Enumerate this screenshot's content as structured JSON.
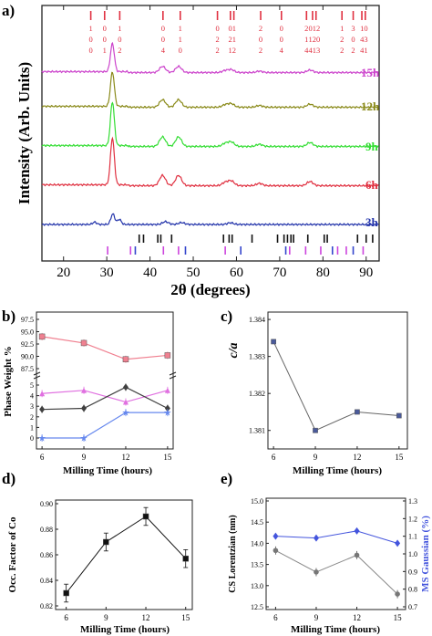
{
  "chart_data": [
    {
      "panel": "a)",
      "type": "line",
      "xlabel": "2θ (degrees)",
      "ylabel": "Intensity (Arb. Units)",
      "xlim": [
        15,
        93
      ],
      "xticks": [
        20,
        30,
        40,
        50,
        60,
        70,
        80,
        90
      ],
      "series": [
        {
          "name": "15h",
          "color": "#cc44cc"
        },
        {
          "name": "12h",
          "color": "#8a8a1a"
        },
        {
          "name": "9h",
          "color": "#33dd33"
        },
        {
          "name": "6h",
          "color": "#e03040"
        },
        {
          "name": "3h",
          "color": "#2233aa"
        }
      ],
      "peaks": [
        {
          "x": 31.3,
          "h": 1.0
        },
        {
          "x": 42.9,
          "h": 0.22
        },
        {
          "x": 46.6,
          "h": 0.22
        },
        {
          "x": 57.4,
          "h": 0.07
        },
        {
          "x": 58.8,
          "h": 0.1
        },
        {
          "x": 65.3,
          "h": 0.05
        },
        {
          "x": 77.0,
          "h": 0.09
        }
      ],
      "peaks_3h": [
        {
          "x": 31.4,
          "h": 0.45
        },
        {
          "x": 32.9,
          "h": 0.22
        },
        {
          "x": 27.2,
          "h": 0.1
        },
        {
          "x": 43.6,
          "h": 0.12
        },
        {
          "x": 47.3,
          "h": 0.08
        },
        {
          "x": 58.6,
          "h": 0.07
        }
      ],
      "hkl_labels": [
        {
          "x": 26.3,
          "hkl": [
            "1",
            "0",
            "0"
          ]
        },
        {
          "x": 29.5,
          "hkl": [
            "0",
            "0",
            "1"
          ]
        },
        {
          "x": 33.0,
          "hkl": [
            "1",
            "0",
            "2"
          ]
        },
        {
          "x": 43.0,
          "hkl": [
            "0",
            "0",
            "4"
          ]
        },
        {
          "x": 47.0,
          "hkl": [
            "1",
            "1",
            "0"
          ]
        },
        {
          "x": 55.6,
          "hkl": [
            "0",
            "2",
            "2"
          ]
        },
        {
          "x": 59.0,
          "hkl": [
            "01",
            "21",
            "12"
          ]
        },
        {
          "x": 65.6,
          "hkl": [
            "2",
            "0",
            "2"
          ]
        },
        {
          "x": 70.4,
          "hkl": [
            "0",
            "0",
            "4"
          ]
        },
        {
          "x": 76.2,
          "hkl": [
            "2",
            "1",
            "4"
          ]
        },
        {
          "x": 78.0,
          "hkl": [
            "012",
            "120",
            "413"
          ]
        },
        {
          "x": 84.4,
          "hkl": [
            "1",
            "2",
            "2"
          ]
        },
        {
          "x": 87.0,
          "hkl": [
            "3",
            "0",
            "2"
          ]
        },
        {
          "x": 89.5,
          "hkl": [
            "10",
            "43",
            "41"
          ]
        }
      ],
      "hkl_ticks": [
        26.3,
        29.5,
        33.0,
        43.0,
        47.0,
        55.6,
        58.6,
        59.4,
        65.6,
        70.4,
        76.2,
        77.6,
        78.4,
        84.4,
        87.0,
        89.0,
        89.8
      ],
      "ref_black": [
        37.5,
        38.5,
        41.8,
        42.5,
        45.0,
        57.0,
        58.3,
        59.0,
        63.6,
        69.5,
        71.0,
        71.8,
        72.6,
        73.2,
        76.5,
        80.3,
        81.0,
        88.0,
        90.0,
        91.5
      ],
      "ref_magenta": [
        30.2,
        35.5,
        43.1,
        46.6,
        57.4,
        72.3,
        76.0,
        79.5,
        83.4,
        85.4,
        89.3
      ],
      "ref_blue": [
        36.6,
        48.2,
        61.0,
        71.4,
        82.2,
        87.0
      ]
    },
    {
      "panel": "b)",
      "type": "line",
      "xlabel": "Milling Time (hours)",
      "ylabel": "Phase Weight %",
      "x": [
        6,
        9,
        12,
        15
      ],
      "yticks_lower": [
        0,
        1,
        2,
        3,
        4,
        5
      ],
      "yticks_upper": [
        "87.5",
        "90.0",
        "92.5",
        "95.0",
        "97.5"
      ],
      "series": [
        {
          "color": "#f08090",
          "marker": "square",
          "values": [
            94.0,
            92.7,
            89.4,
            90.2
          ]
        },
        {
          "color": "#e070e0",
          "marker": "triangle",
          "values": [
            4.2,
            4.5,
            3.4,
            4.5
          ]
        },
        {
          "color": "#404040",
          "marker": "diamond",
          "values": [
            2.7,
            2.8,
            4.8,
            2.8
          ]
        },
        {
          "color": "#6688ee",
          "marker": "star",
          "values": [
            0.0,
            0.0,
            2.4,
            2.4
          ]
        }
      ]
    },
    {
      "panel": "c)",
      "type": "line",
      "xlabel": "Milling Time (hours)",
      "ylabel": "c/a",
      "x": [
        6,
        9,
        12,
        15
      ],
      "values": [
        1.3834,
        1.381,
        1.3815,
        1.3814
      ],
      "ylim": [
        1.3805,
        1.3842
      ],
      "yticks": [
        "1.381",
        "1.382",
        "1.383",
        "1.384"
      ],
      "color": "#4a5a9a"
    },
    {
      "panel": "d)",
      "type": "line",
      "xlabel": "Milling Time (hours)",
      "ylabel": "Occ. Factor of Co",
      "x": [
        6,
        9,
        12,
        15
      ],
      "values": [
        0.83,
        0.87,
        0.89,
        0.857
      ],
      "errors": [
        0.007,
        0.007,
        0.007,
        0.007
      ],
      "ylim": [
        0.82,
        0.9
      ],
      "yticks": [
        "0.82",
        "0.84",
        "0.86",
        "0.88",
        "0.90"
      ],
      "color": "#111111"
    },
    {
      "panel": "e)",
      "type": "line",
      "xlabel": "Milling Time (hours)",
      "ylabel_left": "CS Lorentzian (nm)",
      "ylabel_right": "MS Gaussian (%)",
      "x": [
        6,
        9,
        12,
        15
      ],
      "left_values": [
        13.83,
        13.32,
        13.72,
        12.8
      ],
      "left_color": "#888888",
      "left_ylim": [
        12.5,
        15.0
      ],
      "left_yticks": [
        "12.5",
        "13.0",
        "13.5",
        "14.0",
        "14.5",
        "15.0"
      ],
      "right_values": [
        1.1,
        1.09,
        1.13,
        1.06
      ],
      "right_color": "#4455dd",
      "right_ylim": [
        0.7,
        1.3
      ],
      "right_yticks": [
        "0.7",
        "0.8",
        "0.9",
        "1.0",
        "1.1",
        "1.2",
        "1.3"
      ]
    }
  ]
}
